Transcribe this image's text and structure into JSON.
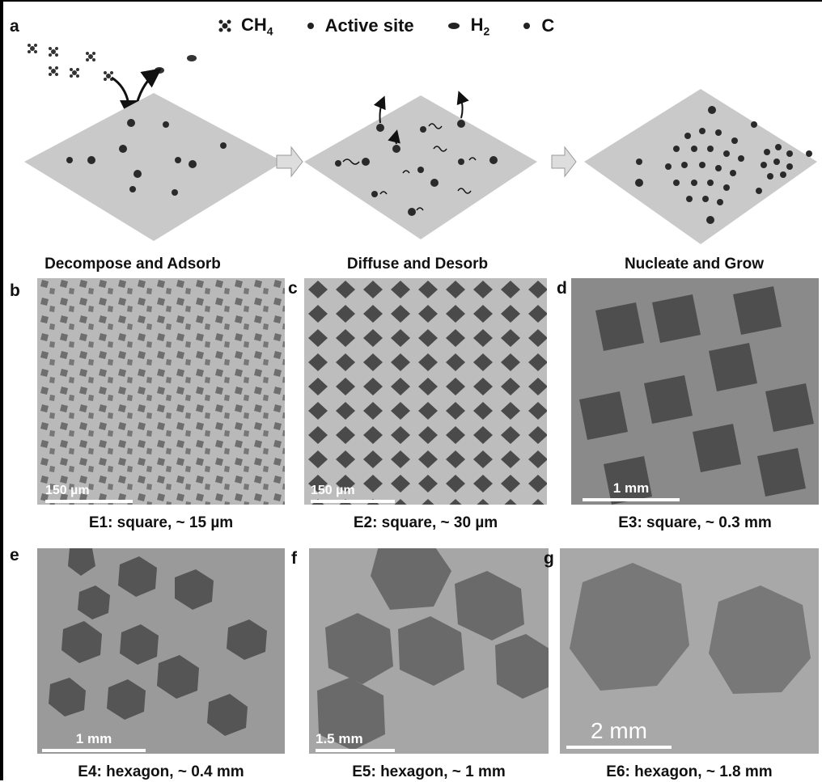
{
  "panel_a": {
    "letter": "a",
    "legend": [
      {
        "icon": "methane-icon",
        "label": "CH",
        "sub": "4"
      },
      {
        "icon": "active-site-icon",
        "label": "Active site",
        "sub": ""
      },
      {
        "icon": "hydrogen-icon",
        "label": "H",
        "sub": "2"
      },
      {
        "icon": "carbon-icon",
        "label": "C",
        "sub": ""
      }
    ],
    "steps": [
      "Decompose and Adsorb",
      "Diffuse and Desorb",
      "Nucleate and Grow"
    ]
  },
  "panels": [
    {
      "letter": "b",
      "scale": "150 µm",
      "caption": "E1: square, ~ 15 µm"
    },
    {
      "letter": "c",
      "scale": "150 µm",
      "caption": "E2: square, ~ 30 µm"
    },
    {
      "letter": "d",
      "scale": "1 mm",
      "caption": "E3: square, ~ 0.3  mm"
    },
    {
      "letter": "e",
      "scale": "1 mm",
      "caption": "E4: hexagon, ~ 0.4  mm"
    },
    {
      "letter": "f",
      "scale": "1.5 mm",
      "caption": "E5: hexagon, ~ 1  mm"
    },
    {
      "letter": "g",
      "scale": "2 mm",
      "caption": "E6: hexagon, ~ 1.8  mm"
    }
  ],
  "colors": {
    "substrate": "#c9c9c9",
    "domain_dark": "#4a4a4a",
    "dot": "#2a2a2a"
  }
}
